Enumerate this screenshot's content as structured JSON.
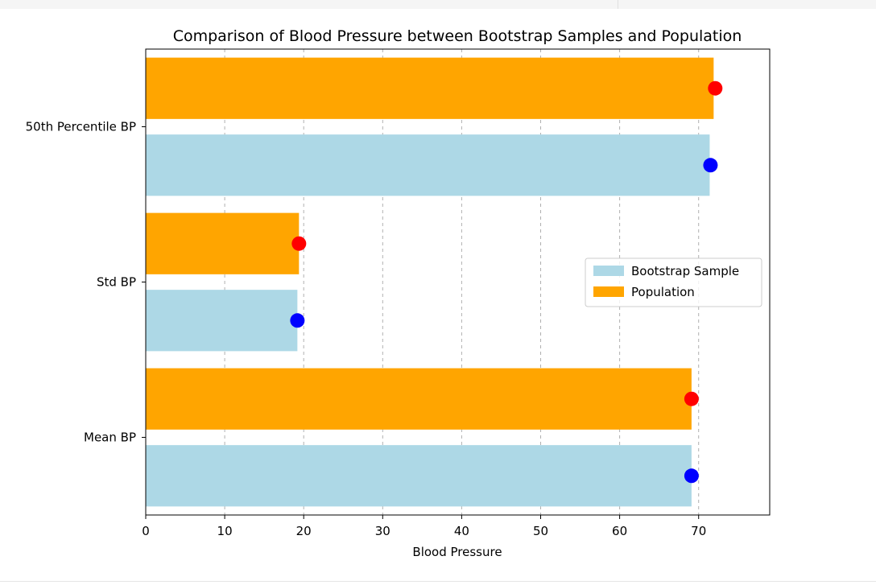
{
  "chart_data": {
    "type": "bar",
    "orientation": "horizontal",
    "title": "Comparison of Blood Pressure between Bootstrap Samples and Population",
    "xlabel": "Blood Pressure",
    "ylabel": "",
    "categories": [
      "Mean BP",
      "Std BP",
      "50th Percentile BP"
    ],
    "xlim": [
      0,
      79
    ],
    "xticks": [
      0,
      10,
      20,
      30,
      40,
      50,
      60,
      70
    ],
    "xtick_labels": [
      "0",
      "10",
      "20",
      "30",
      "40",
      "50",
      "60",
      "70"
    ],
    "grid": "x-dashed",
    "legend_position": "right",
    "series": [
      {
        "name": "Bootstrap Sample",
        "values": [
          69.1,
          19.2,
          71.4
        ],
        "color": "#add8e6",
        "marker_values": [
          69.1,
          19.2,
          71.5
        ],
        "marker_color": "#0000ff"
      },
      {
        "name": "Population",
        "values": [
          69.1,
          19.4,
          71.9
        ],
        "color": "#ffa500",
        "marker_values": [
          69.1,
          19.4,
          72.1
        ],
        "marker_color": "#ff0000"
      }
    ]
  }
}
